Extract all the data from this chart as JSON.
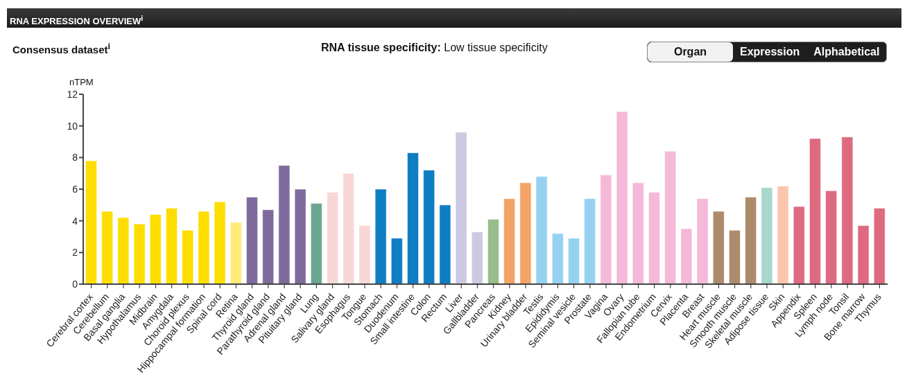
{
  "chart_data": {
    "type": "bar",
    "title": "RNA EXPRESSION OVERVIEW$^{i}$",
    "subtitle": "Consensus dataset$^{i}$",
    "ylabel": "nTPM",
    "annotations": [
      "RNA tissue specificity: Low tissue specificity",
      "Organ",
      "Expression",
      "Alphabetical"
    ],
    "categories": [
      "Cerebral cortex",
      "Cerebellum",
      "Basal ganglia",
      "Hypothalamus",
      "Midbrain",
      "Amygdala",
      "Choroid plexus",
      "Hippocampal formation",
      "Spinal cord",
      "Retina",
      "Thyroid gland",
      "Parathyroid gland",
      "Adrenal gland",
      "Pituitary gland",
      "Lung",
      "Salivary gland",
      "Esophagus",
      "Tongue",
      "Stomach",
      "Duodenum",
      "Small intestine",
      "Colon",
      "Rectum",
      "Liver",
      "Gallbladder",
      "Pancreas",
      "Kidney",
      "Urinary bladder",
      "Testis",
      "Epididymis",
      "Seminal vesicle",
      "Prostate",
      "Vagina",
      "Ovary",
      "Fallopian tube",
      "Endometrium",
      "Cervix",
      "Placenta",
      "Breast",
      "Heart muscle",
      "Smooth muscle",
      "Skeletal muscle",
      "Adipose tissue",
      "Skin",
      "Appendix",
      "Spleen",
      "Lymph node",
      "Tonsil",
      "Bone marrow",
      "Thymus"
    ],
    "values": [
      7.8,
      4.6,
      4.2,
      3.8,
      4.4,
      4.8,
      3.4,
      4.6,
      5.2,
      3.9,
      5.5,
      4.7,
      7.5,
      6.0,
      5.1,
      5.8,
      7.0,
      3.7,
      6.0,
      2.9,
      8.3,
      7.2,
      5.0,
      9.6,
      3.3,
      4.1,
      5.4,
      6.4,
      6.8,
      3.2,
      2.9,
      5.4,
      6.9,
      10.9,
      6.4,
      5.8,
      8.4,
      3.5,
      5.4,
      4.6,
      3.4,
      5.5,
      6.1,
      6.2,
      4.9,
      9.2,
      5.9,
      9.3,
      3.7,
      4.8
    ],
    "colors": [
      "#ffdd00",
      "#ffdd00",
      "#ffdd00",
      "#ffdd00",
      "#ffdd00",
      "#ffdd00",
      "#ffdd00",
      "#ffdd00",
      "#ffdd00",
      "#ffea75",
      "#7f6a9e",
      "#7f6a9e",
      "#7f6a9e",
      "#7f6a9e",
      "#6aa692",
      "#f9d7d7",
      "#f9d7d7",
      "#f9d7d7",
      "#0f7dc2",
      "#0f7dc2",
      "#0f7dc2",
      "#0f7dc2",
      "#0f7dc2",
      "#ccc9e2",
      "#ccc9e2",
      "#96bd8b",
      "#f4a265",
      "#f4a265",
      "#96d1f2",
      "#96d1f2",
      "#96d1f2",
      "#96d1f2",
      "#f4b8d8",
      "#f4b8d8",
      "#f4b8d8",
      "#f4b8d8",
      "#f4b8d8",
      "#f4b8d8",
      "#f4b8d8",
      "#ae8a6c",
      "#ae8a6c",
      "#ae8a6c",
      "#a6d8cc",
      "#f9c6ad",
      "#dd6a7f",
      "#dd6a7f",
      "#dd6a7f",
      "#dd6a7f",
      "#dd6a7f",
      "#dd6a7f"
    ],
    "ylim": [
      0,
      12
    ],
    "yticks": [
      0,
      2,
      4,
      6,
      8,
      10,
      12
    ],
    "grid": false
  }
}
